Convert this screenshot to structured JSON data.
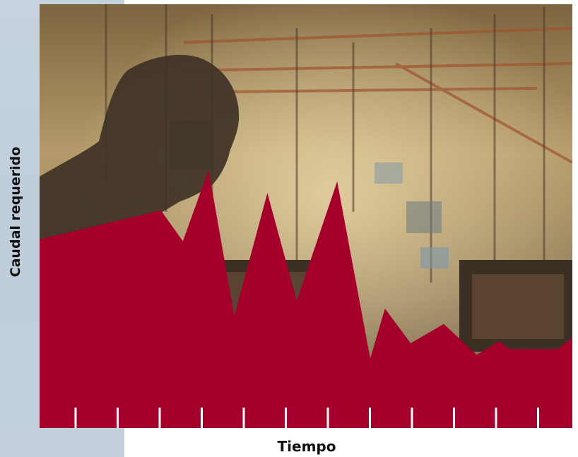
{
  "chart_data": {
    "type": "area",
    "title": "",
    "xlabel": "Tiempo",
    "ylabel": "Caudal requerido",
    "x_ticks": 12,
    "grid": false,
    "background": "photo of factory floor with silhouetted worker",
    "series": [
      {
        "values": [
          {
            "x": 0.0,
            "y": 0.98
          },
          {
            "x": 3.3,
            "y": 1.13
          },
          {
            "x": 3.9,
            "y": 0.97
          },
          {
            "x": 4.6,
            "y": 1.34
          },
          {
            "x": 5.3,
            "y": 0.58
          },
          {
            "x": 6.2,
            "y": 1.22
          },
          {
            "x": 7.0,
            "y": 0.66
          },
          {
            "x": 8.1,
            "y": 1.28
          },
          {
            "x": 9.0,
            "y": 0.36
          },
          {
            "x": 9.4,
            "y": 0.62
          },
          {
            "x": 10.1,
            "y": 0.44
          },
          {
            "x": 11.0,
            "y": 0.54
          },
          {
            "x": 11.9,
            "y": 0.38
          },
          {
            "x": 12.5,
            "y": 0.45
          },
          {
            "x": 12.8,
            "y": 0.41
          },
          {
            "x": 14.1,
            "y": 0.41
          },
          {
            "x": 14.5,
            "y": 0.47
          }
        ]
      }
    ],
    "xlim": [
      0,
      14.5
    ],
    "ylim": [
      0,
      2.2
    ]
  },
  "colors": {
    "area_fill": "#a5002c",
    "tick_marks": "#ffffff",
    "left_panel": "#c3d0dc"
  }
}
